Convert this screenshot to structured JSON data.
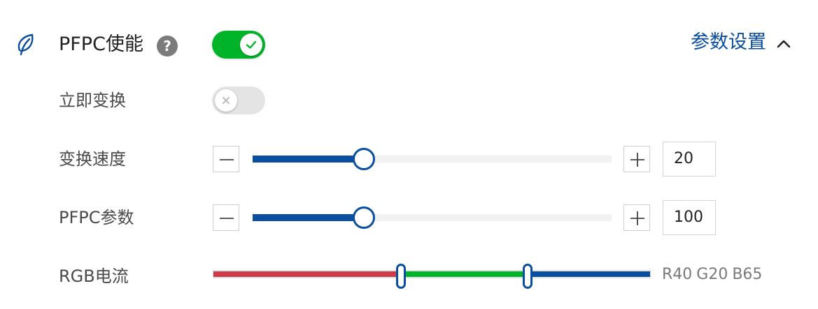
{
  "pfpc": {
    "label": "PFPC使能",
    "help_icon": "question-circle-icon",
    "help_glyph": "?",
    "enabled": true,
    "params_link": "参数设置",
    "collapse_icon": "chevron-up-icon"
  },
  "immediate": {
    "label": "立即变换",
    "enabled": false
  },
  "speed": {
    "label": "变换速度",
    "value": "20",
    "fraction": 0.31
  },
  "param": {
    "label": "PFPC参数",
    "value": "100",
    "fraction": 0.31
  },
  "rgb": {
    "label": "RGB电流",
    "r_text": "R40",
    "g_text": "G20",
    "b_text": "B65",
    "split1_fraction": 0.43,
    "split2_fraction": 0.72
  },
  "colors": {
    "accent": "#0a4ea1",
    "toggle_on": "#00b42a",
    "red": "#d03a47",
    "green": "#00b42a",
    "blue": "#0a4ea1"
  }
}
